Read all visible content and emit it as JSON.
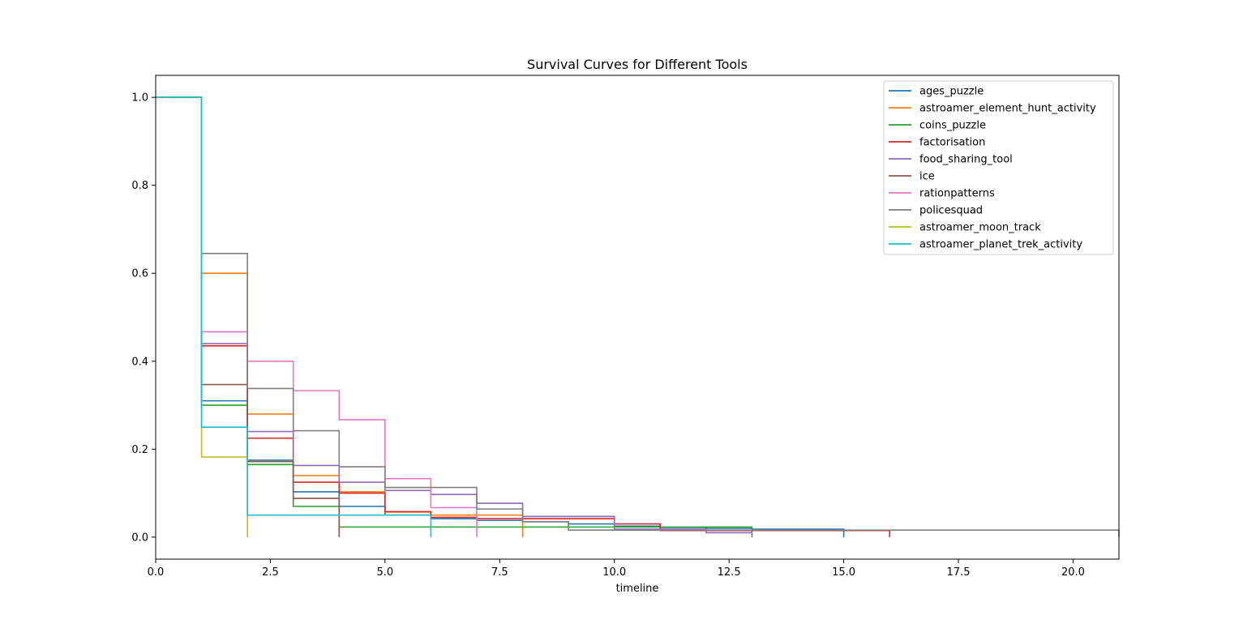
{
  "chart_data": {
    "type": "line",
    "step": "post",
    "title": "Survival Curves for Different Tools",
    "xlabel": "timeline",
    "ylabel": "",
    "xlim": [
      0,
      21
    ],
    "ylim": [
      -0.05,
      1.05
    ],
    "xticks": [
      "0.0",
      "2.5",
      "5.0",
      "7.5",
      "10.0",
      "12.5",
      "15.0",
      "17.5",
      "20.0"
    ],
    "yticks": [
      "0.0",
      "0.2",
      "0.4",
      "0.6",
      "0.8",
      "1.0"
    ],
    "legend_position": "top-right",
    "grid": false,
    "series": [
      {
        "name": "ages_puzzle",
        "color": "#1f77b4",
        "x": [
          0,
          1,
          2,
          3,
          4,
          5,
          6,
          7,
          8,
          9,
          10,
          11,
          12,
          13,
          14,
          15
        ],
        "y": [
          1.0,
          0.31,
          0.175,
          0.103,
          0.07,
          0.05,
          0.042,
          0.038,
          0.035,
          0.03,
          0.025,
          0.022,
          0.02,
          0.018,
          0.018,
          0.0
        ],
        "end_x": 15
      },
      {
        "name": "astroamer_element_hunt_activity",
        "color": "#ff7f0e",
        "x": [
          0,
          1,
          2,
          3,
          4,
          5,
          6,
          7,
          8
        ],
        "y": [
          1.0,
          0.6,
          0.28,
          0.14,
          0.103,
          0.057,
          0.05,
          0.05,
          0.0
        ],
        "end_x": 8
      },
      {
        "name": "coins_puzzle",
        "color": "#2ca02c",
        "x": [
          0,
          1,
          2,
          3,
          4,
          5,
          6,
          7,
          8,
          9,
          10,
          11,
          12,
          13
        ],
        "y": [
          1.0,
          0.3,
          0.165,
          0.07,
          0.023,
          0.023,
          0.023,
          0.023,
          0.023,
          0.023,
          0.023,
          0.023,
          0.023,
          0.0
        ],
        "end_x": 13
      },
      {
        "name": "factorisation",
        "color": "#d62728",
        "x": [
          0,
          1,
          2,
          3,
          4,
          5,
          6,
          7,
          8,
          9,
          10,
          11,
          12,
          13,
          14,
          15,
          16
        ],
        "y": [
          1.0,
          0.435,
          0.225,
          0.125,
          0.1,
          0.058,
          0.045,
          0.042,
          0.042,
          0.042,
          0.03,
          0.015,
          0.015,
          0.015,
          0.015,
          0.015,
          0.0
        ],
        "end_x": 16
      },
      {
        "name": "food_sharing_tool",
        "color": "#9467bd",
        "x": [
          0,
          1,
          2,
          3,
          4,
          5,
          6,
          7,
          8,
          9,
          10,
          11,
          12,
          13
        ],
        "y": [
          1.0,
          0.44,
          0.24,
          0.163,
          0.125,
          0.106,
          0.097,
          0.077,
          0.047,
          0.047,
          0.018,
          0.018,
          0.01,
          0.0
        ],
        "end_x": 13
      },
      {
        "name": "ice",
        "color": "#8c564b",
        "x": [
          0,
          1,
          2,
          3,
          4
        ],
        "y": [
          1.0,
          0.347,
          0.172,
          0.088,
          0.0
        ],
        "end_x": 4
      },
      {
        "name": "rationpatterns",
        "color": "#e377c2",
        "x": [
          0,
          1,
          2,
          3,
          4,
          5,
          6,
          7
        ],
        "y": [
          1.0,
          0.467,
          0.4,
          0.333,
          0.267,
          0.133,
          0.067,
          0.0
        ],
        "end_x": 7
      },
      {
        "name": "policesquad",
        "color": "#7f7f7f",
        "x": [
          0,
          1,
          2,
          3,
          4,
          5,
          6,
          7,
          8,
          9,
          10,
          11,
          12,
          13,
          14,
          15,
          16,
          17,
          18,
          19,
          20,
          21
        ],
        "y": [
          1.0,
          0.645,
          0.338,
          0.242,
          0.16,
          0.113,
          0.113,
          0.064,
          0.035,
          0.016,
          0.016,
          0.016,
          0.016,
          0.016,
          0.016,
          0.016,
          0.016,
          0.016,
          0.016,
          0.016,
          0.016,
          0.0
        ],
        "end_x": 21
      },
      {
        "name": "astroamer_moon_track",
        "color": "#bcbd22",
        "x": [
          0,
          1,
          2
        ],
        "y": [
          1.0,
          0.182,
          0.0
        ],
        "end_x": 2
      },
      {
        "name": "astroamer_planet_trek_activity",
        "color": "#17becf",
        "x": [
          0,
          1,
          2,
          6
        ],
        "y": [
          1.0,
          0.25,
          0.05,
          0.0
        ],
        "end_x": 6
      }
    ]
  }
}
